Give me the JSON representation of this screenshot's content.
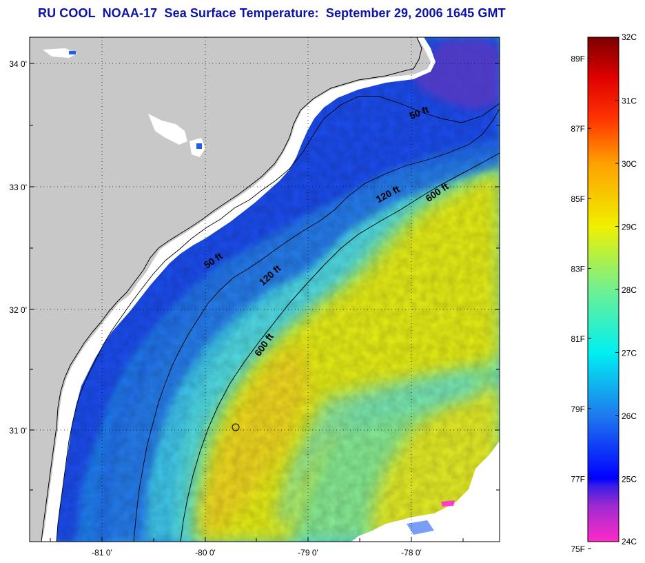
{
  "title": "RU COOL  NOAA-17  Sea Surface Temperature:  September 29, 2006 1645 GMT",
  "map": {
    "latitude_labels": [
      "34 0'",
      "33 0'",
      "32 0'",
      "31 0'"
    ],
    "longitude_labels": [
      "-81 0'",
      "-80 0'",
      "-79 0'",
      "-78 0'"
    ],
    "grid": "dotted",
    "land_color": "#c8c8c8",
    "cloud_color": "#ffffff",
    "contours": [
      {
        "label": "50 ft"
      },
      {
        "label": "50 ft"
      },
      {
        "label": "120 ft"
      },
      {
        "label": "120 ft"
      },
      {
        "label": "600 ft"
      },
      {
        "label": "600 ft"
      }
    ]
  },
  "colorbar": {
    "fahrenheit_labels": [
      "89F",
      "87F",
      "85F",
      "83F",
      "81F",
      "79F",
      "77F",
      "75F"
    ],
    "celsius_labels": [
      "32C",
      "31C",
      "30C",
      "29C",
      "28C",
      "27C",
      "26C",
      "25C",
      "24C"
    ],
    "range_celsius": [
      24,
      32
    ],
    "colors": [
      "#ff2ac8",
      "#7030c8",
      "#0000ff",
      "#1e6ef0",
      "#00e6f0",
      "#50f0a0",
      "#e6f000",
      "#ffb400",
      "#ff5000",
      "#ff0000",
      "#820000"
    ]
  }
}
